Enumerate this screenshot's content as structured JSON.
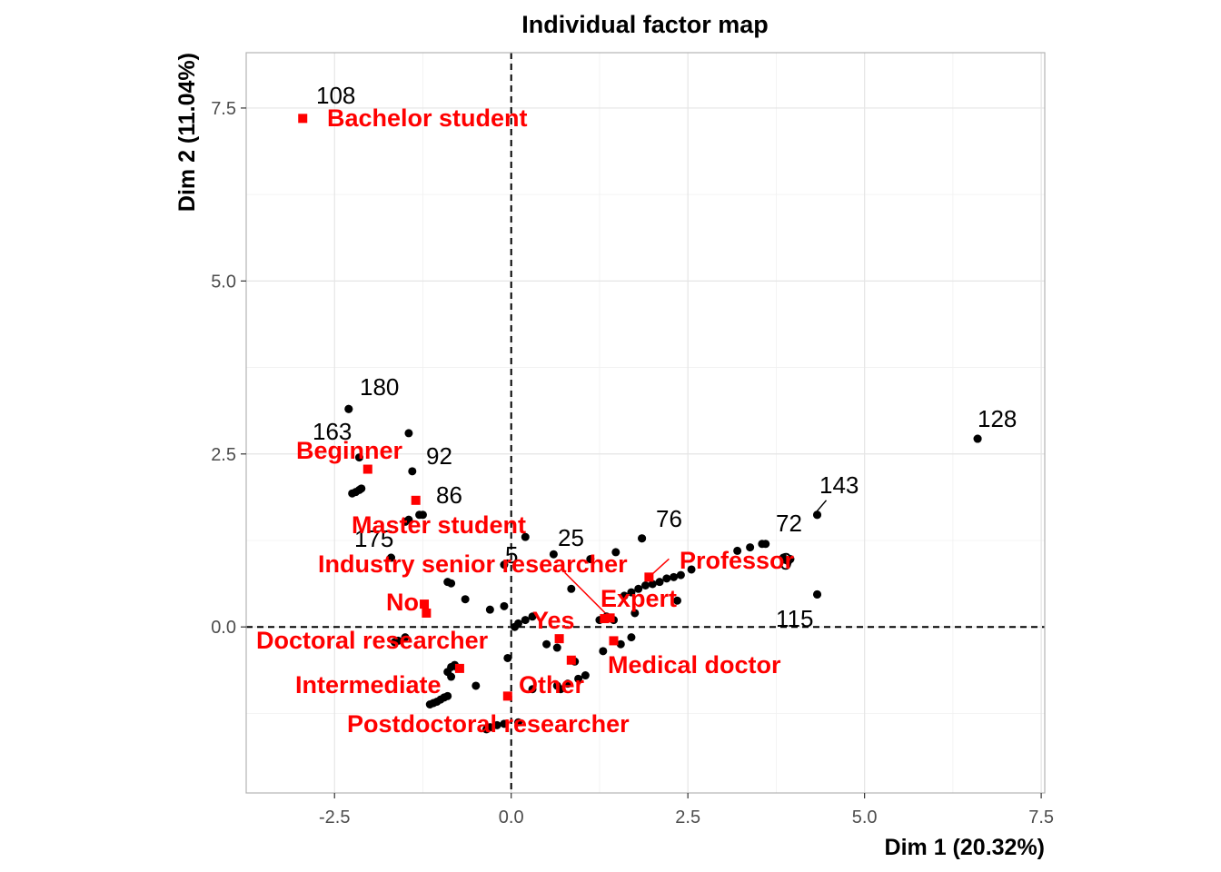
{
  "chart_data": {
    "type": "scatter",
    "title": "Individual factor map",
    "xlabel": "Dim 1 (20.32%)",
    "ylabel": "Dim 2 (11.04%)",
    "xlim": [
      -3.75,
      7.55
    ],
    "ylim": [
      -2.4,
      8.3
    ],
    "x_ticks": [
      -2.5,
      0.0,
      2.5,
      5.0,
      7.5
    ],
    "y_ticks": [
      0.0,
      2.5,
      5.0,
      7.5
    ],
    "x_tick_labels": [
      "-2.5",
      "0.0",
      "2.5",
      "5.0",
      "7.5"
    ],
    "y_tick_labels": [
      "0.0",
      "2.5",
      "5.0",
      "7.5"
    ],
    "grid": true,
    "reference_lines": {
      "x": 0,
      "y": 0,
      "style": "dashed"
    },
    "colors": {
      "individuals": "#000000",
      "categories": "#ff0000",
      "grid": "#e5e5e5",
      "panel_border": "#b3b3b3"
    },
    "individuals": [
      [
        -2.3,
        3.15
      ],
      [
        -1.45,
        2.8
      ],
      [
        -2.25,
        1.93
      ],
      [
        -2.2,
        1.95
      ],
      [
        -2.15,
        1.98
      ],
      [
        -2.12,
        2.0
      ],
      [
        -1.3,
        1.62
      ],
      [
        -1.45,
        1.55
      ],
      [
        -1.5,
        1.52
      ],
      [
        -1.7,
        1.0
      ],
      [
        -0.9,
        0.65
      ],
      [
        -0.85,
        0.63
      ],
      [
        -0.65,
        0.4
      ],
      [
        -0.3,
        0.25
      ],
      [
        -0.1,
        0.3
      ],
      [
        0.05,
        0.0
      ],
      [
        0.1,
        0.05
      ],
      [
        0.2,
        0.1
      ],
      [
        0.3,
        0.15
      ],
      [
        -0.05,
        -0.45
      ],
      [
        -1.5,
        -0.15
      ],
      [
        -1.6,
        -0.2
      ],
      [
        -1.65,
        -0.22
      ],
      [
        -0.8,
        -0.55
      ],
      [
        -0.85,
        -0.58
      ],
      [
        -0.75,
        -0.6
      ],
      [
        -0.9,
        -0.65
      ],
      [
        -0.85,
        -0.72
      ],
      [
        -0.5,
        -0.85
      ],
      [
        -0.9,
        -1.0
      ],
      [
        -0.95,
        -1.02
      ],
      [
        -1.0,
        -1.05
      ],
      [
        -1.05,
        -1.08
      ],
      [
        -1.1,
        -1.1
      ],
      [
        -1.15,
        -1.12
      ],
      [
        0.2,
        1.3
      ],
      [
        0.85,
        0.55
      ],
      [
        1.12,
        0.98
      ],
      [
        1.48,
        1.08
      ],
      [
        1.85,
        1.28
      ],
      [
        0.5,
        -0.25
      ],
      [
        0.65,
        -0.3
      ],
      [
        0.9,
        -0.5
      ],
      [
        0.3,
        -0.9
      ],
      [
        0.65,
        -0.85
      ],
      [
        0.7,
        -0.9
      ],
      [
        0.8,
        -0.82
      ],
      [
        0.95,
        -0.75
      ],
      [
        1.05,
        -0.7
      ],
      [
        1.3,
        -0.35
      ],
      [
        1.45,
        0.1
      ],
      [
        1.25,
        0.1
      ],
      [
        1.35,
        0.15
      ],
      [
        1.55,
        -0.25
      ],
      [
        1.7,
        -0.15
      ],
      [
        1.75,
        0.2
      ],
      [
        1.6,
        0.45
      ],
      [
        1.7,
        0.5
      ],
      [
        1.8,
        0.55
      ],
      [
        1.9,
        0.6
      ],
      [
        2.0,
        0.62
      ],
      [
        2.1,
        0.65
      ],
      [
        2.2,
        0.7
      ],
      [
        2.3,
        0.72
      ],
      [
        2.4,
        0.75
      ],
      [
        2.55,
        0.83
      ],
      [
        3.2,
        1.1
      ],
      [
        3.38,
        1.15
      ],
      [
        3.55,
        1.2
      ],
      [
        3.85,
        1.0
      ],
      [
        3.92,
        0.95
      ],
      [
        2.35,
        0.38
      ],
      [
        4.33,
        0.47
      ],
      [
        4.33,
        1.62
      ],
      [
        6.6,
        2.72
      ],
      [
        -0.3,
        -1.45
      ],
      [
        -0.2,
        -1.42
      ],
      [
        -0.1,
        -1.4
      ],
      [
        -0.35,
        -1.48
      ],
      [
        0.1,
        -1.38
      ]
    ],
    "labeled_individuals": [
      {
        "label": "108",
        "x": -2.95,
        "y": 7.35
      },
      {
        "label": "180",
        "x": -2.3,
        "y": 3.15
      },
      {
        "label": "163",
        "x": -2.15,
        "y": 2.45
      },
      {
        "label": "92",
        "x": -1.4,
        "y": 2.25
      },
      {
        "label": "86",
        "x": -1.25,
        "y": 1.62
      },
      {
        "label": "175",
        "x": -1.7,
        "y": 1.0
      },
      {
        "label": "5",
        "x": -0.1,
        "y": 0.9
      },
      {
        "label": "25",
        "x": 0.6,
        "y": 1.05
      },
      {
        "label": "76",
        "x": 1.85,
        "y": 1.28
      },
      {
        "label": "72",
        "x": 3.6,
        "y": 1.2
      },
      {
        "label": "9",
        "x": 3.95,
        "y": 0.98
      },
      {
        "label": "115",
        "x": 4.33,
        "y": 0.47
      },
      {
        "label": "143",
        "x": 4.33,
        "y": 1.62
      },
      {
        "label": "128",
        "x": 6.6,
        "y": 2.72
      }
    ],
    "categories": [
      {
        "label": "Bachelor student",
        "x": -2.95,
        "y": 7.35
      },
      {
        "label": "Beginner",
        "x": -2.03,
        "y": 2.28
      },
      {
        "label": "Master student",
        "x": -1.35,
        "y": 1.83
      },
      {
        "label": "Industry senior researcher",
        "x": 1.4,
        "y": 0.13
      },
      {
        "label": "Professor",
        "x": 1.95,
        "y": 0.72
      },
      {
        "label": "No",
        "x": -1.23,
        "y": 0.33
      },
      {
        "label": "Expert",
        "x": 1.32,
        "y": 0.12
      },
      {
        "label": "Yes",
        "x": 0.68,
        "y": -0.17
      },
      {
        "label": "Doctoral researcher",
        "x": -1.2,
        "y": 0.2
      },
      {
        "label": "Medical doctor",
        "x": 1.45,
        "y": -0.2
      },
      {
        "label": "Intermediate",
        "x": -0.73,
        "y": -0.6
      },
      {
        "label": "Other",
        "x": 0.85,
        "y": -0.48
      },
      {
        "label": "Postdoctoral researcher",
        "x": -0.05,
        "y": -1.0
      }
    ]
  }
}
